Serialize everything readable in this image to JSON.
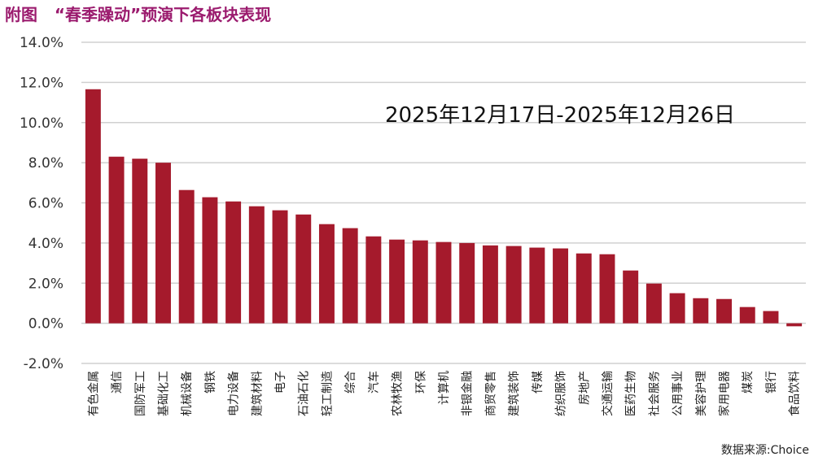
{
  "title": "附图   “春季躁动”预演下各板块表现",
  "source": "数据来源:Choice",
  "chart_data": {
    "type": "bar",
    "title": "附图   “春季躁动”预演下各板块表现",
    "annotation": "2025年12月17日-2025年12月26日",
    "xlabel": "",
    "ylabel": "",
    "ylim": [
      -2,
      14
    ],
    "yticks": [
      -2,
      0,
      2,
      4,
      6,
      8,
      10,
      12,
      14
    ],
    "ytick_labels": [
      "-2.0%",
      "0.0%",
      "2.0%",
      "4.0%",
      "6.0%",
      "8.0%",
      "10.0%",
      "12.0%",
      "14.0%"
    ],
    "grid": true,
    "color": "#a51a2c",
    "categories": [
      "有色金属",
      "通信",
      "国防军工",
      "基础化工",
      "机械设备",
      "钢铁",
      "电力设备",
      "建筑材料",
      "电子",
      "石油石化",
      "轻工制造",
      "综合",
      "汽车",
      "农林牧渔",
      "环保",
      "计算机",
      "非银金融",
      "商贸零售",
      "建筑装饰",
      "传媒",
      "纺织服饰",
      "房地产",
      "交通运输",
      "医药生物",
      "社会服务",
      "公用事业",
      "美容护理",
      "家用电器",
      "煤炭",
      "银行",
      "食品饮料"
    ],
    "values": [
      11.66,
      8.3,
      8.2,
      8.0,
      6.64,
      6.28,
      6.07,
      5.83,
      5.63,
      5.42,
      4.94,
      4.74,
      4.33,
      4.17,
      4.13,
      4.05,
      4.0,
      3.88,
      3.85,
      3.77,
      3.73,
      3.48,
      3.44,
      2.63,
      1.98,
      1.5,
      1.25,
      1.21,
      0.81,
      0.61,
      -0.15
    ]
  }
}
